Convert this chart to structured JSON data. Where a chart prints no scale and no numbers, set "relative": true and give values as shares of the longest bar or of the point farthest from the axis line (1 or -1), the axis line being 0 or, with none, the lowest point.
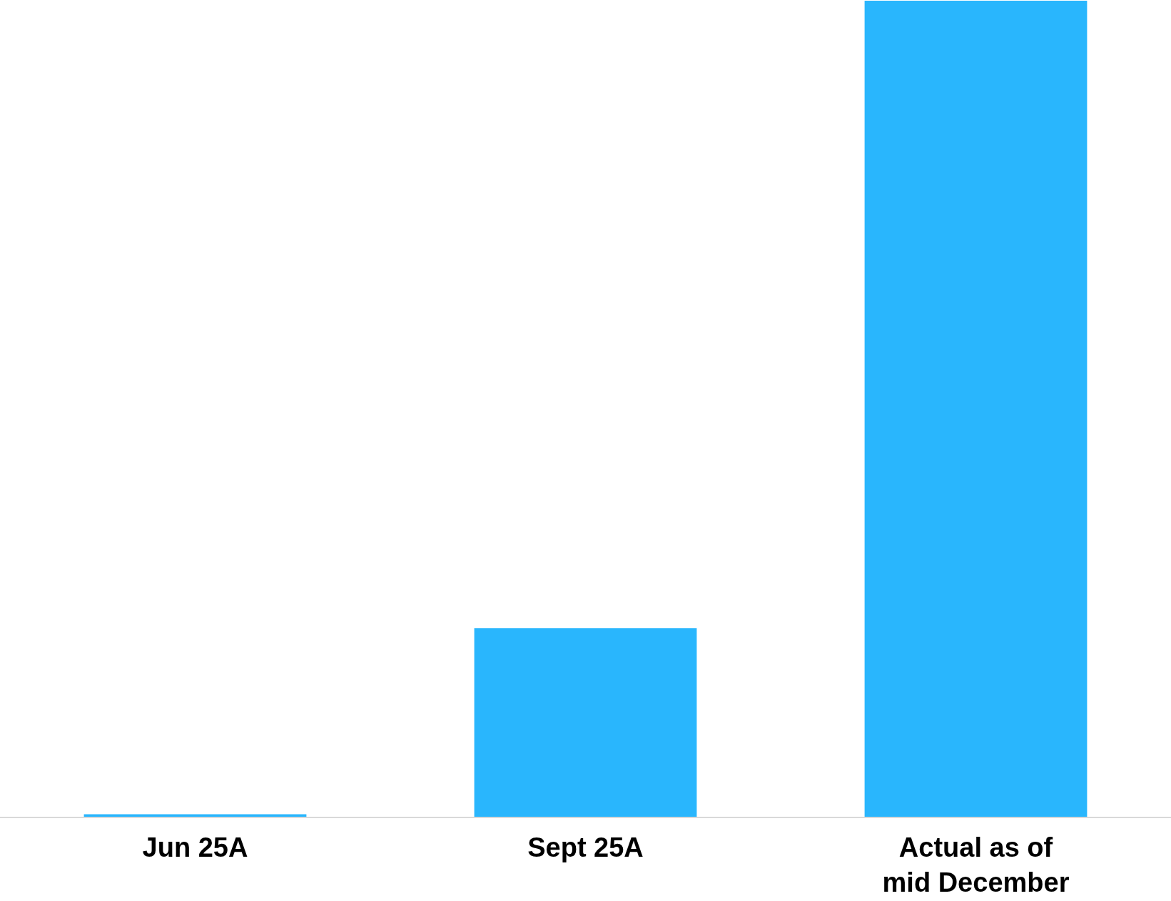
{
  "chart_data": {
    "type": "bar",
    "relative": true,
    "categories": [
      "Jun 25A",
      "Sept 25A",
      "Actual as of\nmid December"
    ],
    "values": [
      0.003,
      0.231,
      1
    ],
    "color": "#29b6fd"
  }
}
